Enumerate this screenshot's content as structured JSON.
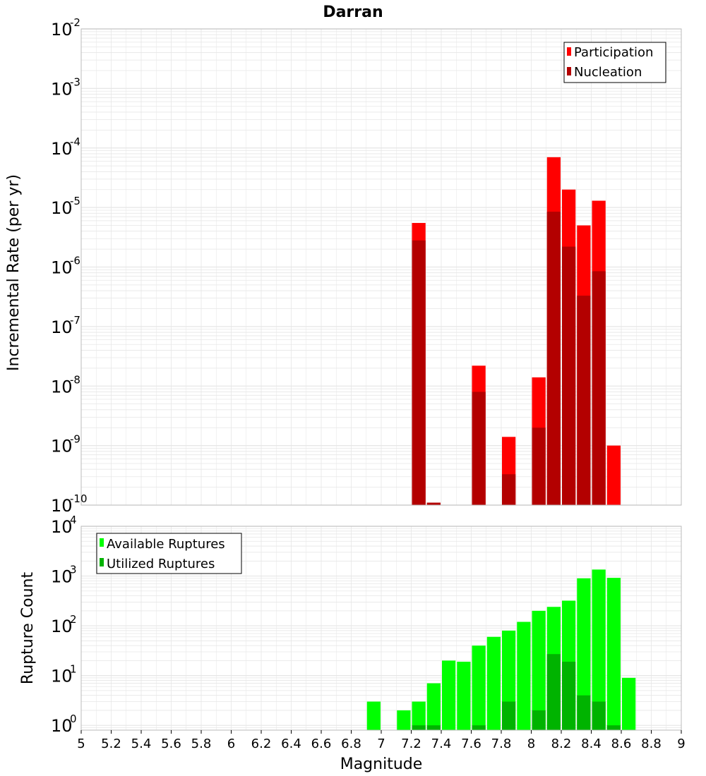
{
  "title": "Darran",
  "colors": {
    "participation": "#ff0000",
    "nucleation": "#b30000",
    "available": "#00ff00",
    "utilized": "#00b300",
    "plot_border": "#bbbbbb",
    "grid": "#e6e6e6"
  },
  "chart_data": [
    {
      "type": "bar",
      "name": "rate-panel",
      "ylabel": "Incremental Rate (per yr)",
      "yscale": "log",
      "ylim": [
        1e-10,
        0.01
      ],
      "xlim": [
        5,
        9
      ],
      "grid": true,
      "legend_position": "top-right",
      "ytick_exponents": [
        "-2",
        "-3",
        "-4",
        "-5",
        "-6",
        "-7",
        "-8",
        "-9",
        "-10"
      ],
      "ytick_base": "10",
      "x": [
        7.25,
        7.35,
        7.65,
        7.85,
        8.05,
        8.15,
        8.25,
        8.35,
        8.45,
        8.55
      ],
      "series": [
        {
          "name": "Participation",
          "values": [
            5.5e-06,
            1.1e-10,
            2.2e-08,
            1.4e-09,
            1.4e-08,
            7e-05,
            2e-05,
            5e-06,
            1.3e-05,
            1e-09
          ]
        },
        {
          "name": "Nucleation",
          "values": [
            2.8e-06,
            1.1e-10,
            8e-09,
            3.3e-10,
            2e-09,
            8.5e-06,
            2.2e-06,
            3.3e-07,
            8.5e-07,
            null
          ]
        }
      ]
    },
    {
      "type": "bar",
      "name": "count-panel",
      "ylabel": "Rupture Count",
      "xlabel": "Magnitude",
      "yscale": "log",
      "ylim": [
        0.8,
        10000
      ],
      "xlim": [
        5,
        9
      ],
      "grid": true,
      "legend_position": "top-left",
      "ytick_exponents": [
        "4",
        "3",
        "2",
        "1",
        "0"
      ],
      "ytick_base": "10",
      "xticks": [
        "5",
        "5.2",
        "5.4",
        "5.6",
        "5.8",
        "6",
        "6.2",
        "6.4",
        "6.6",
        "6.8",
        "7",
        "7.2",
        "7.4",
        "7.6",
        "7.8",
        "8",
        "8.2",
        "8.4",
        "8.6",
        "8.8",
        "9"
      ],
      "x": [
        6.95,
        7.15,
        7.25,
        7.35,
        7.45,
        7.55,
        7.65,
        7.75,
        7.85,
        7.95,
        8.05,
        8.15,
        8.25,
        8.35,
        8.45,
        8.55,
        8.65
      ],
      "series": [
        {
          "name": "Available Ruptures",
          "values": [
            3,
            2,
            3,
            7,
            20,
            19,
            40,
            60,
            80,
            120,
            200,
            240,
            320,
            900,
            1350,
            920,
            9
          ]
        },
        {
          "name": "Utilized Ruptures",
          "values": [
            null,
            null,
            1,
            1,
            null,
            null,
            1,
            null,
            3,
            null,
            2,
            27,
            19,
            4,
            3,
            1,
            null
          ]
        }
      ]
    }
  ]
}
